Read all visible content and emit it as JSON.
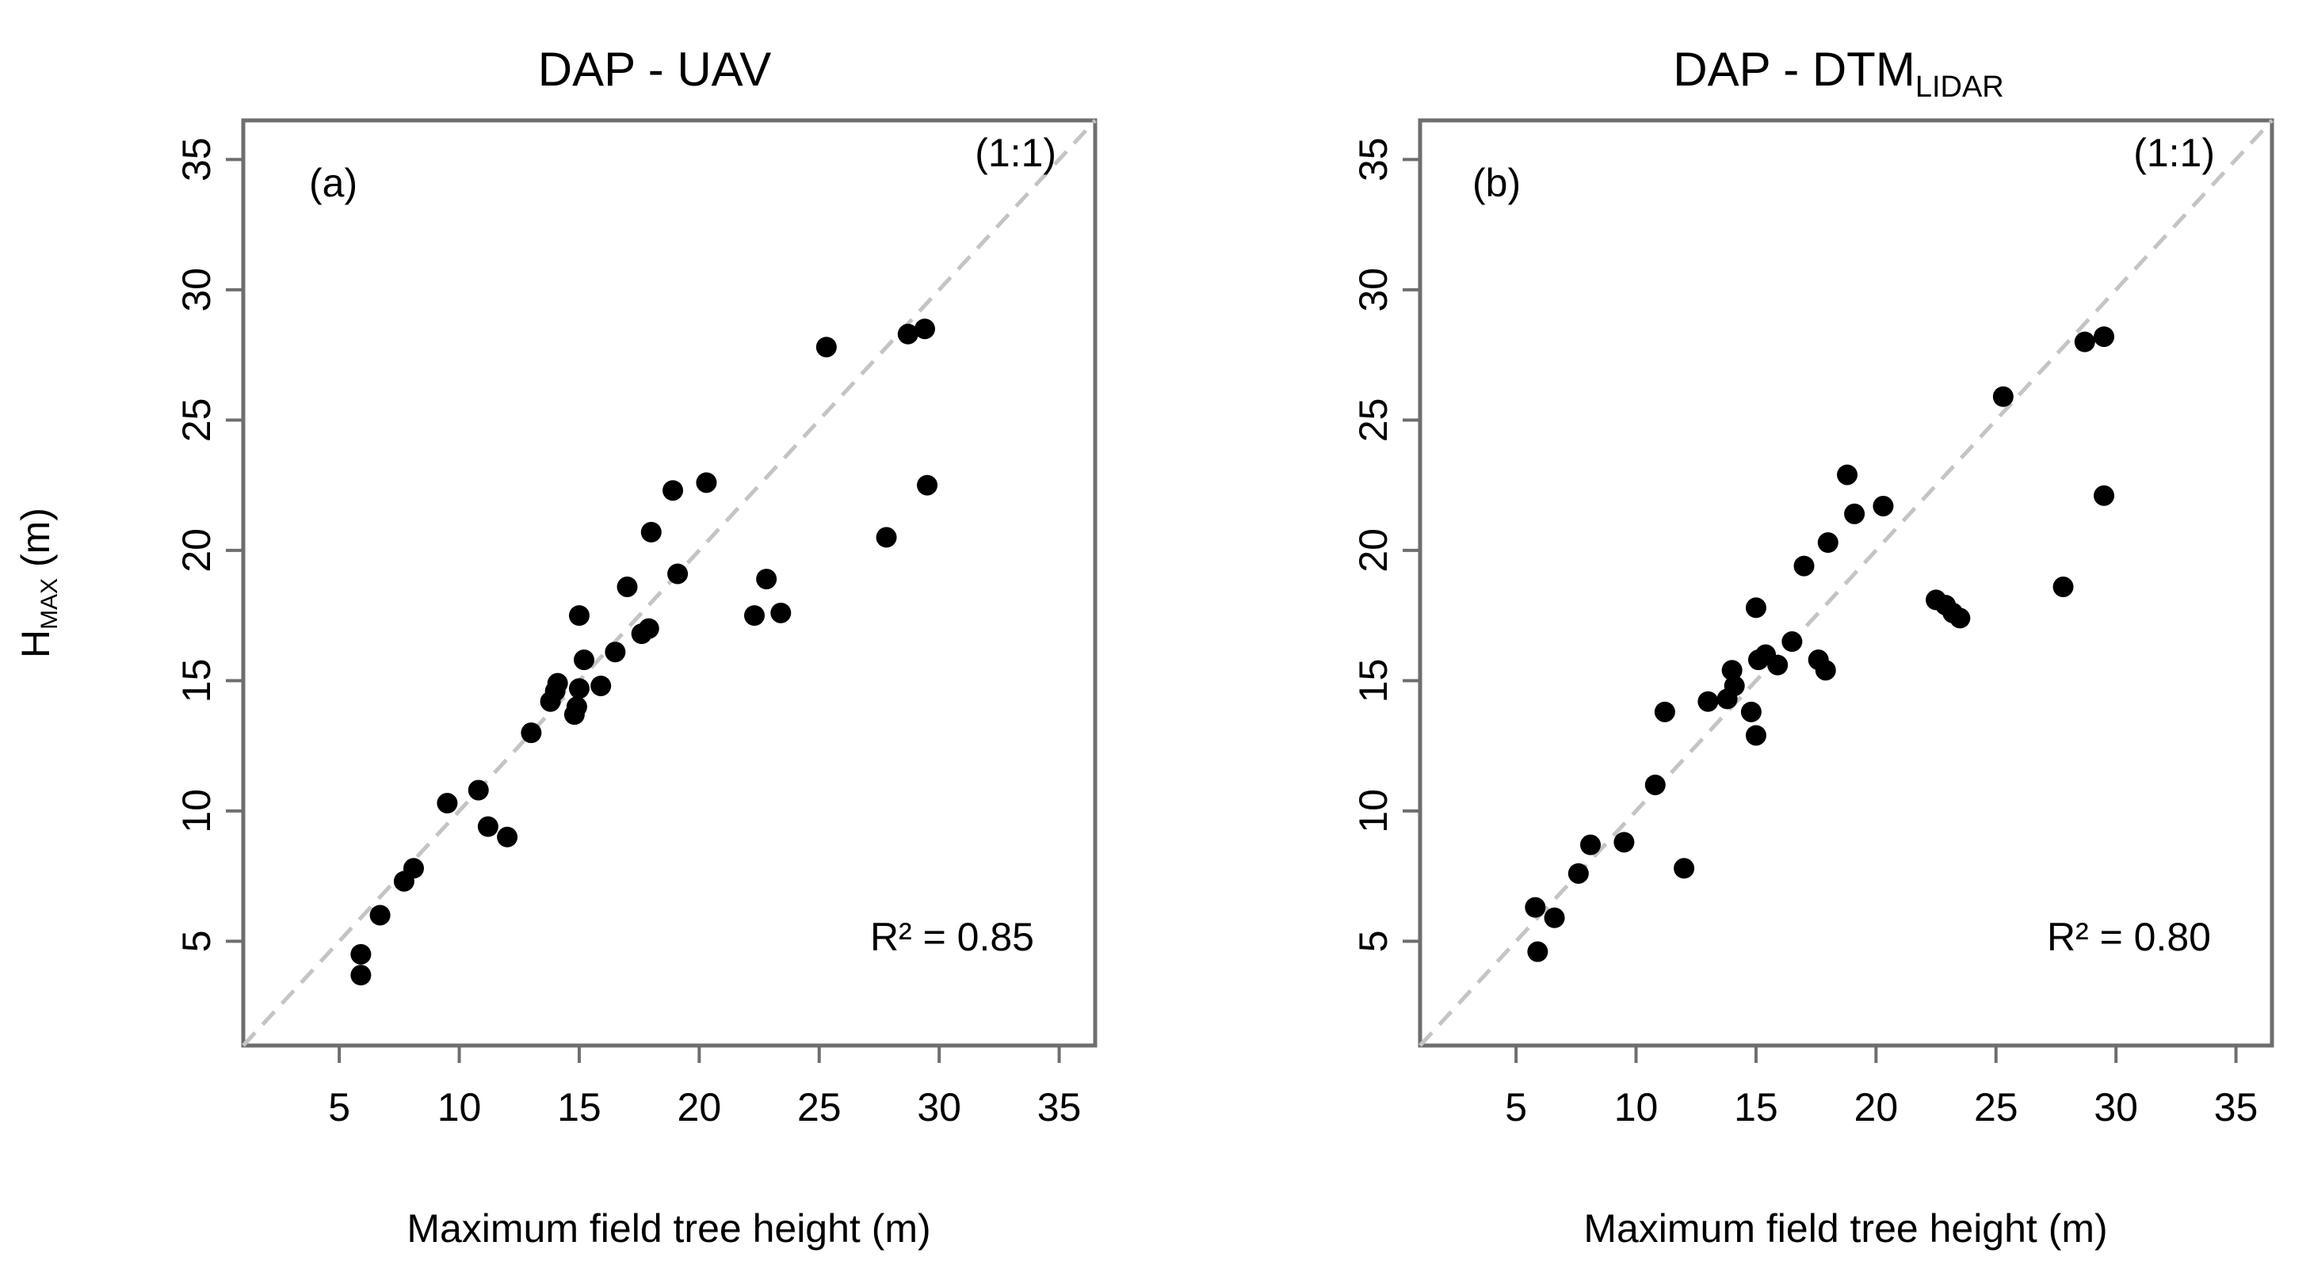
{
  "chart_data": [
    {
      "type": "scatter",
      "title": "DAP - UAV",
      "panel_label": "(a)",
      "reference_label": "(1:1)",
      "r2_label": "R² = 0.85",
      "xlabel": "Maximum field tree height (m)",
      "ylabel": "H",
      "ylabel_sub": "MAX",
      "ylabel_unit": " (m)",
      "xlim": [
        1,
        36.5
      ],
      "ylim": [
        1,
        36.5
      ],
      "xticks": [
        5,
        10,
        15,
        20,
        25,
        30,
        35
      ],
      "yticks": [
        5,
        10,
        15,
        20,
        25,
        30,
        35
      ],
      "reference_line": [
        [
          1,
          1
        ],
        [
          36.5,
          36.5
        ]
      ],
      "points": [
        [
          5.9,
          4.5
        ],
        [
          5.9,
          3.7
        ],
        [
          6.7,
          6.0
        ],
        [
          7.7,
          7.3
        ],
        [
          8.1,
          7.8
        ],
        [
          9.5,
          10.3
        ],
        [
          10.8,
          10.8
        ],
        [
          11.2,
          9.4
        ],
        [
          12.0,
          9.0
        ],
        [
          13.0,
          13.0
        ],
        [
          13.8,
          14.2
        ],
        [
          14.0,
          14.6
        ],
        [
          14.1,
          14.9
        ],
        [
          14.8,
          13.7
        ],
        [
          14.9,
          14.0
        ],
        [
          15.0,
          14.7
        ],
        [
          15.0,
          17.5
        ],
        [
          15.2,
          15.8
        ],
        [
          15.9,
          14.8
        ],
        [
          16.5,
          16.1
        ],
        [
          17.0,
          18.6
        ],
        [
          17.6,
          16.8
        ],
        [
          17.9,
          17.0
        ],
        [
          18.0,
          20.7
        ],
        [
          18.9,
          22.3
        ],
        [
          19.1,
          19.1
        ],
        [
          20.3,
          22.6
        ],
        [
          22.3,
          17.5
        ],
        [
          22.8,
          18.9
        ],
        [
          23.4,
          17.6
        ],
        [
          25.3,
          27.8
        ],
        [
          27.8,
          20.5
        ],
        [
          28.7,
          28.3
        ],
        [
          29.4,
          28.5
        ],
        [
          29.5,
          22.5
        ]
      ]
    },
    {
      "type": "scatter",
      "title": "DAP - DTM",
      "title_sub": "LIDAR",
      "panel_label": "(b)",
      "reference_label": "(1:1)",
      "r2_label": "R² = 0.80",
      "xlabel": "Maximum field tree height  (m)",
      "xlim": [
        1,
        36.5
      ],
      "ylim": [
        1,
        36.5
      ],
      "xticks": [
        5,
        10,
        15,
        20,
        25,
        30,
        35
      ],
      "yticks": [
        5,
        10,
        15,
        20,
        25,
        30,
        35
      ],
      "reference_line": [
        [
          1,
          1
        ],
        [
          36.5,
          36.5
        ]
      ],
      "points": [
        [
          5.8,
          6.3
        ],
        [
          5.9,
          4.6
        ],
        [
          6.6,
          5.9
        ],
        [
          7.6,
          7.6
        ],
        [
          8.1,
          8.7
        ],
        [
          9.5,
          8.8
        ],
        [
          10.8,
          11.0
        ],
        [
          11.2,
          13.8
        ],
        [
          12.0,
          7.8
        ],
        [
          13.0,
          14.2
        ],
        [
          13.8,
          14.3
        ],
        [
          14.0,
          15.4
        ],
        [
          14.1,
          14.8
        ],
        [
          14.8,
          13.8
        ],
        [
          15.0,
          12.9
        ],
        [
          15.0,
          17.8
        ],
        [
          15.1,
          15.8
        ],
        [
          15.4,
          16.0
        ],
        [
          15.9,
          15.6
        ],
        [
          16.5,
          16.5
        ],
        [
          17.0,
          19.4
        ],
        [
          17.6,
          15.8
        ],
        [
          17.9,
          15.4
        ],
        [
          18.0,
          20.3
        ],
        [
          18.8,
          22.9
        ],
        [
          19.1,
          21.4
        ],
        [
          20.3,
          21.7
        ],
        [
          22.5,
          18.1
        ],
        [
          22.9,
          17.9
        ],
        [
          23.2,
          17.6
        ],
        [
          23.5,
          17.4
        ],
        [
          25.3,
          25.9
        ],
        [
          27.8,
          18.6
        ],
        [
          28.7,
          28.0
        ],
        [
          29.5,
          28.2
        ],
        [
          29.5,
          22.1
        ]
      ]
    }
  ]
}
